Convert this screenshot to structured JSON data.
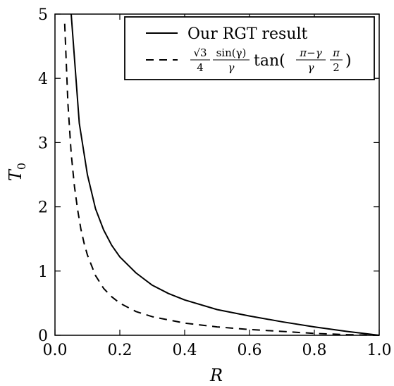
{
  "chart_data": {
    "type": "line",
    "xlabel": "R",
    "ylabel": "T0",
    "ylabel_main": "T",
    "ylabel_sub": "0",
    "xlim": [
      0.0,
      1.0
    ],
    "ylim": [
      0,
      5
    ],
    "xticks": [
      "0.0",
      "0.2",
      "0.4",
      "0.6",
      "0.8",
      "1.0"
    ],
    "yticks": [
      "0",
      "1",
      "2",
      "3",
      "4",
      "5"
    ],
    "xtick_values": [
      0.0,
      0.2,
      0.4,
      0.6,
      0.8,
      1.0
    ],
    "ytick_values": [
      0,
      1,
      2,
      3,
      4,
      5
    ],
    "legend_position": "top-right",
    "grid": false,
    "series": [
      {
        "name": "Our RGT result",
        "style": "solid",
        "color": "#000000",
        "x": [
          0.05,
          0.075,
          0.1,
          0.125,
          0.15,
          0.175,
          0.2,
          0.25,
          0.3,
          0.35,
          0.4,
          0.5,
          0.6,
          0.7,
          0.8,
          0.9,
          1.0
        ],
        "y": [
          5.0,
          3.3,
          2.5,
          1.97,
          1.64,
          1.4,
          1.22,
          0.97,
          0.78,
          0.65,
          0.55,
          0.4,
          0.3,
          0.21,
          0.13,
          0.06,
          0.0
        ]
      },
      {
        "name": "√3/4 · sin(γ)/γ · tan((π−γ)/γ · π/2)",
        "style": "dashed",
        "color": "#000000",
        "x": [
          0.03,
          0.04,
          0.05,
          0.06,
          0.07,
          0.08,
          0.09,
          0.1,
          0.125,
          0.15,
          0.175,
          0.2,
          0.25,
          0.3,
          0.4,
          0.5,
          0.6,
          0.7,
          0.8,
          0.9,
          1.0
        ],
        "y": [
          4.85,
          3.6,
          2.83,
          2.32,
          1.95,
          1.65,
          1.43,
          1.25,
          0.93,
          0.73,
          0.6,
          0.5,
          0.37,
          0.29,
          0.19,
          0.13,
          0.09,
          0.06,
          0.03,
          0.01,
          0.0
        ]
      }
    ]
  },
  "legend": {
    "entry1": "Our RGT result",
    "entry2": {
      "sqrt3": "√3",
      "four": "4",
      "sin": "sin(γ)",
      "gamma": "γ",
      "tan_open": "tan(",
      "pi_minus_gamma": "π−γ",
      "gamma2": "γ",
      "pi": "π",
      "two": "2",
      "close": ")"
    }
  }
}
